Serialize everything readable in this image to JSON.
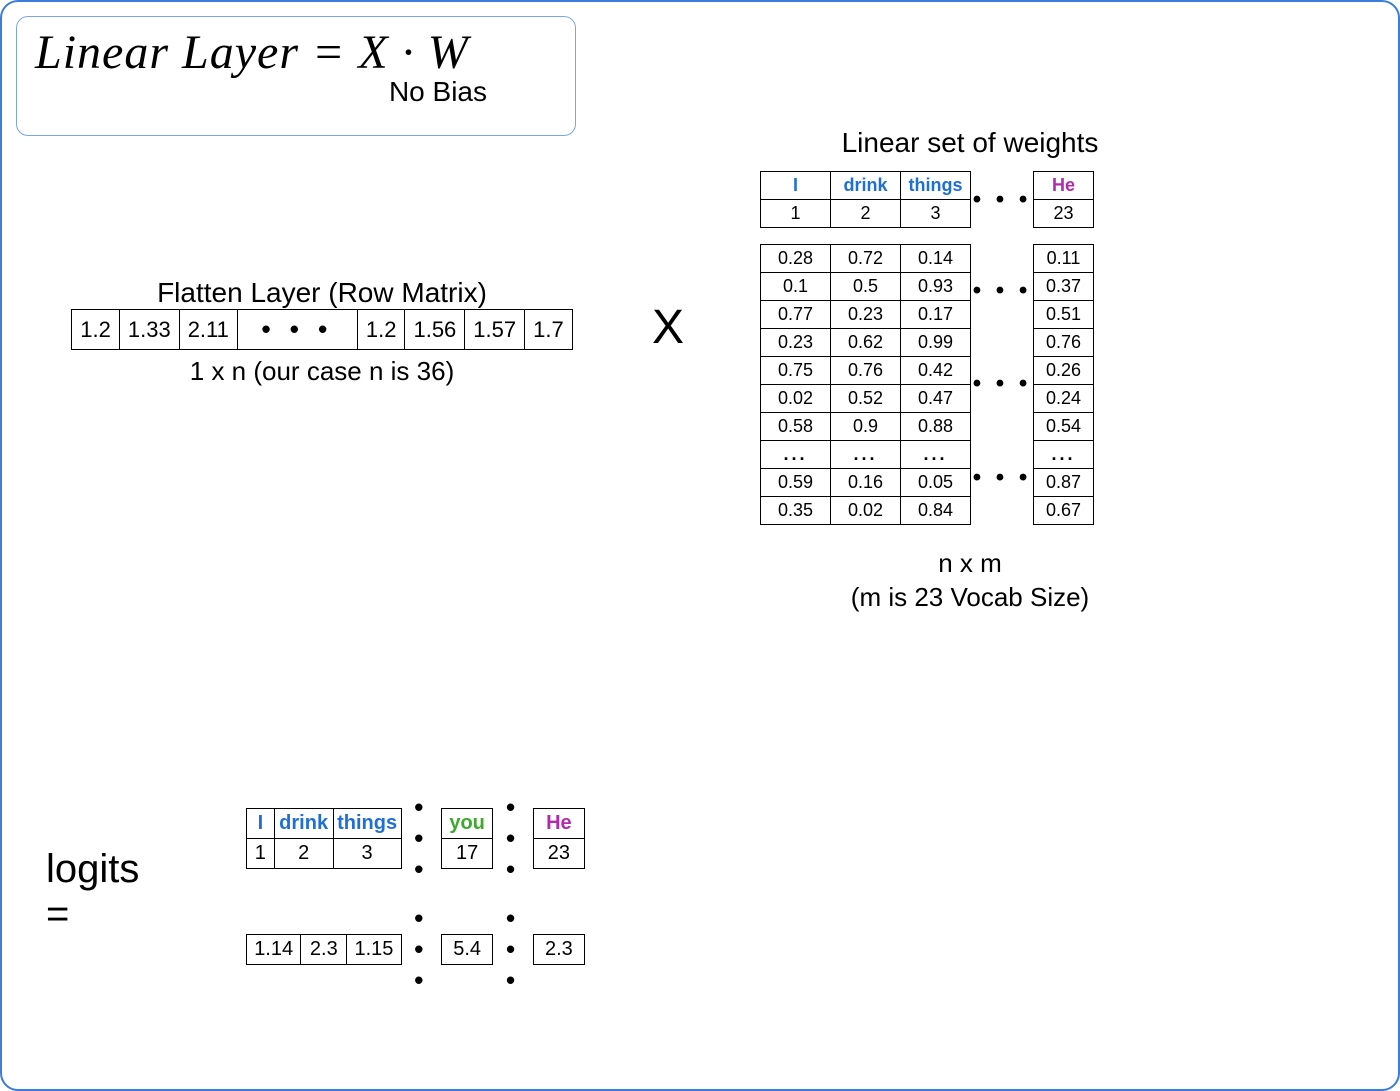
{
  "formula": {
    "text": "Linear Layer = X · W",
    "sub": "No Bias"
  },
  "flatten": {
    "title": "Flatten Layer (Row Matrix)",
    "values": [
      "1.2",
      "1.33",
      "2.11",
      "• • •",
      "1.2",
      "1.56",
      "1.57",
      "1.7"
    ],
    "sub": "1 x n (our case n is 36)"
  },
  "multiply_symbol": "X",
  "weights": {
    "title": "Linear set of weights",
    "head_words": [
      "I",
      "drink",
      "things"
    ],
    "head_word_last": "He",
    "head_idx": [
      "1",
      "2",
      "3"
    ],
    "head_idx_last": "23",
    "rows_main": [
      [
        "0.28",
        "0.72",
        "0.14"
      ],
      [
        "0.1",
        "0.5",
        "0.93"
      ],
      [
        "0.77",
        "0.23",
        "0.17"
      ],
      [
        "0.23",
        "0.62",
        "0.99"
      ],
      [
        "0.75",
        "0.76",
        "0.42"
      ],
      [
        "0.02",
        "0.52",
        "0.47"
      ],
      [
        "0.58",
        "0.9",
        "0.88"
      ],
      [
        "...",
        "...",
        "..."
      ],
      [
        "0.59",
        "0.16",
        "0.05"
      ],
      [
        "0.35",
        "0.02",
        "0.84"
      ]
    ],
    "rows_last": [
      "0.11",
      "0.37",
      "0.51",
      "0.76",
      "0.26",
      "0.24",
      "0.54",
      "...",
      "0.87",
      "0.67"
    ],
    "side_dots": [
      "• • •",
      "• • •",
      "• • •"
    ],
    "sub1": "n x m",
    "sub2": "(m is 23 Vocab Size)"
  },
  "logits": {
    "label": "logits =",
    "head_words": [
      "I",
      "drink",
      "things"
    ],
    "head_mid_word": "you",
    "head_last_word": "He",
    "head_idx": [
      "1",
      "2",
      "3"
    ],
    "head_mid_idx": "17",
    "head_last_idx": "23",
    "values": [
      "1.14",
      "2.3",
      "1.15"
    ],
    "val_mid": "5.4",
    "val_last": "2.3",
    "dots": "• • •"
  },
  "colors": {
    "blue": "#1f6fd8",
    "green": "#3fa82f",
    "purple": "#b02bb0",
    "border": "#3b7dd8"
  }
}
